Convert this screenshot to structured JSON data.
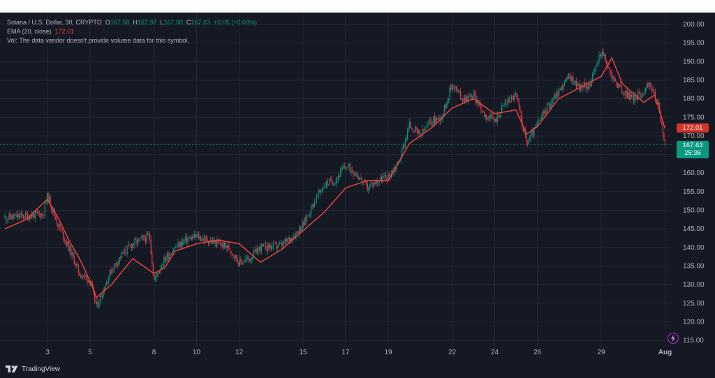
{
  "legend": {
    "symbol": "Solana / U.S. Dollar, 30, CRYPTO",
    "o_label": "O",
    "o_value": "167.58",
    "h_label": "H",
    "h_value": "167.97",
    "l_label": "L",
    "l_value": "167.30",
    "c_label": "C",
    "c_value": "167.63",
    "change": "+0.05 (+0.03%)",
    "ema_label": "EMA (20, close)",
    "ema_value": "172.01",
    "vol_note": "Vol: The data vendor doesn't provide volume data for this symbol."
  },
  "price_tags": {
    "ema": "172.01",
    "last_price": "167.63",
    "countdown": "25:36"
  },
  "branding": {
    "logo_text": "TradingView"
  },
  "icons": {
    "logo": "tradingview-logo-icon",
    "flash": "lightning-icon"
  },
  "colors": {
    "background": "#151924",
    "up": "#089981",
    "down": "#f23645",
    "ema": "#e8433a",
    "grid": "#232735",
    "text": "#b2b5be"
  },
  "chart_data": {
    "type": "line",
    "title": "Solana / U.S. Dollar, 30, CRYPTO",
    "ylim": [
      113,
      202
    ],
    "y_ticks": [
      115,
      120,
      125,
      130,
      135,
      140,
      145,
      150,
      155,
      160,
      165,
      170,
      175,
      180,
      185,
      190,
      195,
      200
    ],
    "x_ticks": [
      "3",
      "5",
      "8",
      "10",
      "12",
      "15",
      "17",
      "19",
      "22",
      "24",
      "26",
      "29",
      "Aug"
    ],
    "grid": true,
    "series": [
      {
        "name": "Solana / U.S. Dollar",
        "x": [
          "Jul 1",
          "Jul 2",
          "Jul 2.8",
          "Jul 3",
          "Jul 3.5",
          "Jul 4",
          "Jul 4.5",
          "Jul 5",
          "Jul 5.3",
          "Jul 6",
          "Jul 6.5",
          "Jul 7",
          "Jul 7.8",
          "Jul 8",
          "Jul 8.5",
          "Jul 9",
          "Jul 9.5",
          "Jul 10",
          "Jul 10.5",
          "Jul 11",
          "Jul 11.5",
          "Jul 12",
          "Jul 12.5",
          "Jul 13",
          "Jul 14",
          "Jul 14.5",
          "Jul 15",
          "Jul 15.5",
          "Jul 16",
          "Jul 16.5",
          "Jul 17",
          "Jul 17.5",
          "Jul 18",
          "Jul 18.5",
          "Jul 19",
          "Jul 19.5",
          "Jul 20",
          "Jul 20.5",
          "Jul 21",
          "Jul 21.5",
          "Jul 22",
          "Jul 22.5",
          "Jul 23",
          "Jul 23.5",
          "Jul 24",
          "Jul 24.5",
          "Jul 25",
          "Jul 25.5",
          "Jul 26",
          "Jul 26.5",
          "Jul 27",
          "Jul 27.5",
          "Jul 28",
          "Jul 28.5",
          "Jul 29",
          "Jul 29.5",
          "Jul 30",
          "Jul 30.5",
          "Jul 31",
          "Jul 31.3",
          "Jul 31.7",
          "Aug 1"
        ],
        "values": [
          148,
          148.5,
          149,
          154,
          146,
          140,
          133,
          131,
          124,
          134,
          138,
          141,
          143,
          131,
          137,
          140,
          142,
          143,
          142,
          141,
          140,
          136,
          137,
          140,
          140.5,
          143,
          146,
          152,
          157,
          158,
          162,
          160,
          156,
          158,
          159,
          163,
          173,
          170,
          174,
          175,
          184,
          180,
          181,
          176,
          174,
          179,
          181,
          168,
          173,
          178,
          182,
          186,
          183,
          184,
          193,
          186,
          182,
          180,
          182,
          184,
          178,
          167.63
        ]
      },
      {
        "name": "EMA (20, close)",
        "x": [
          "Jul 1",
          "Jul 2",
          "Jul 3",
          "Jul 3.5",
          "Jul 4",
          "Jul 4.5",
          "Jul 5",
          "Jul 5.3",
          "Jul 6",
          "Jul 7",
          "Jul 8",
          "Jul 8.5",
          "Jul 9",
          "Jul 10",
          "Jul 11",
          "Jul 12",
          "Jul 13",
          "Jul 14",
          "Jul 15",
          "Jul 16",
          "Jul 17",
          "Jul 18",
          "Jul 19",
          "Jul 20",
          "Jul 21",
          "Jul 22",
          "Jul 23",
          "Jul 24",
          "Jul 25",
          "Jul 25.5",
          "Jul 26",
          "Jul 27",
          "Jul 28",
          "Jul 29",
          "Jul 29.5",
          "Jul 30",
          "Jul 31",
          "Jul 31.5",
          "Aug 1"
        ],
        "values": [
          145,
          147.5,
          153,
          148,
          142,
          137,
          131,
          126.5,
          130,
          137,
          133,
          134.5,
          139,
          141,
          142,
          141,
          136,
          139.5,
          144.5,
          149.5,
          156,
          158,
          158,
          168,
          172,
          177.5,
          180,
          176,
          177,
          170.5,
          172.5,
          180,
          183,
          186,
          191,
          184,
          179,
          181,
          172.01
        ]
      }
    ]
  }
}
